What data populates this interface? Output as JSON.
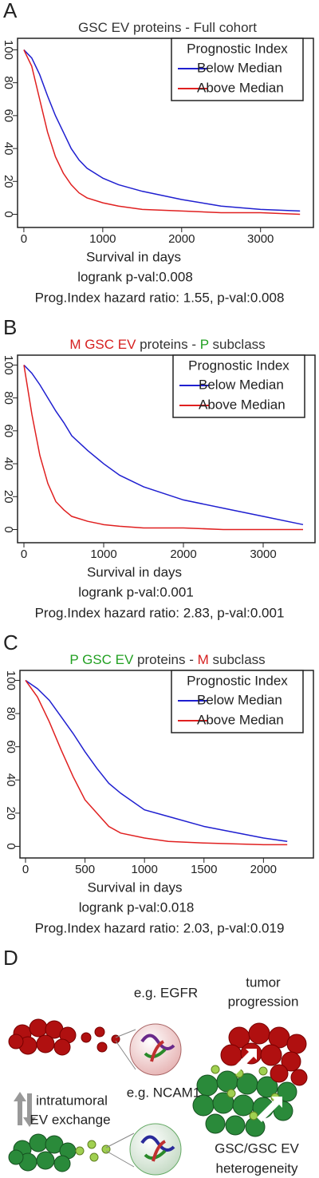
{
  "chart_data": [
    {
      "type": "line",
      "label": "A",
      "title_parts": [
        {
          "text": "GSC EV proteins - Full cohort",
          "color": "#333333"
        }
      ],
      "x_label": "Survival in days",
      "annotations": [
        "logrank p-val:0.008",
        "Prog.Index hazard ratio: 1.55, p-val:0.008"
      ],
      "legend_title": "Prognostic Index",
      "legend": "upper right",
      "x": [
        0,
        100,
        200,
        300,
        400,
        500,
        600,
        700,
        800,
        1000,
        1200,
        1500,
        2000,
        2500,
        3000,
        3500
      ],
      "series": [
        {
          "name": "Below Median",
          "color": "#1f1fd0",
          "values": [
            100,
            95,
            85,
            72,
            60,
            50,
            40,
            33,
            28,
            22,
            18,
            14,
            9,
            5,
            3,
            2
          ]
        },
        {
          "name": "Above Median",
          "color": "#e02020",
          "values": [
            100,
            90,
            70,
            50,
            35,
            25,
            18,
            13,
            10,
            7,
            5,
            3,
            2,
            1,
            1,
            0
          ]
        }
      ],
      "xlim": [
        -80,
        3670
      ],
      "ylim": [
        -8,
        107
      ],
      "xticks": [
        0,
        1000,
        2000,
        3000
      ],
      "yticks": [
        0,
        20,
        40,
        60,
        80,
        100
      ]
    },
    {
      "type": "line",
      "label": "B",
      "title_parts": [
        {
          "text": "M GSC EV",
          "color": "#d62020"
        },
        {
          "text": " proteins - ",
          "color": "#333333"
        },
        {
          "text": "P",
          "color": "#22a022"
        },
        {
          "text": " subclass",
          "color": "#333333"
        }
      ],
      "x_label": "Survival in days",
      "annotations": [
        "logrank p-val:0.001",
        "Prog.Index hazard ratio: 2.83, p-val:0.001"
      ],
      "legend_title": "Prognostic Index",
      "legend": "upper right",
      "x": [
        0,
        100,
        200,
        300,
        400,
        500,
        600,
        800,
        1000,
        1200,
        1500,
        2000,
        2500,
        3000,
        3500
      ],
      "series": [
        {
          "name": "Below Median",
          "color": "#1f1fd0",
          "values": [
            100,
            95,
            88,
            80,
            72,
            65,
            57,
            48,
            40,
            33,
            26,
            18,
            13,
            8,
            3
          ]
        },
        {
          "name": "Above Median",
          "color": "#e02020",
          "values": [
            100,
            70,
            45,
            28,
            17,
            12,
            8,
            5,
            3,
            2,
            1,
            1,
            0,
            0,
            0
          ]
        }
      ],
      "xlim": [
        -80,
        3650
      ],
      "ylim": [
        -8,
        106
      ],
      "xticks": [
        0,
        1000,
        2000,
        3000
      ],
      "yticks": [
        0,
        20,
        40,
        60,
        80,
        100
      ]
    },
    {
      "type": "line",
      "label": "C",
      "title_parts": [
        {
          "text": "P GSC EV",
          "color": "#22a022"
        },
        {
          "text": " proteins - ",
          "color": "#333333"
        },
        {
          "text": "M",
          "color": "#d62020"
        },
        {
          "text": " subclass",
          "color": "#333333"
        }
      ],
      "x_label": "Survival in days",
      "annotations": [
        "logrank p-val:0.018",
        "Prog.Index hazard ratio: 2.03, p-val:0.019"
      ],
      "legend_title": "Prognostic Index",
      "legend": "upper right",
      "x": [
        0,
        100,
        200,
        300,
        400,
        500,
        600,
        700,
        800,
        1000,
        1200,
        1500,
        2000,
        2200
      ],
      "series": [
        {
          "name": "Below Median",
          "color": "#1f1fd0",
          "values": [
            100,
            95,
            88,
            78,
            68,
            57,
            47,
            38,
            32,
            22,
            18,
            12,
            5,
            3
          ]
        },
        {
          "name": "Above Median",
          "color": "#e02020",
          "values": [
            100,
            90,
            75,
            58,
            42,
            28,
            20,
            12,
            8,
            5,
            3,
            2,
            1,
            1
          ]
        }
      ],
      "xlim": [
        -47,
        2420
      ],
      "ylim": [
        -7,
        106
      ],
      "xticks": [
        0,
        500,
        1000,
        1500,
        2000
      ],
      "yticks": [
        0,
        20,
        40,
        60,
        80,
        100
      ]
    }
  ],
  "diagram": {
    "label": "D",
    "egfr": "e.g. EGFR",
    "ncam": "e.g. NCAM1",
    "tumor": [
      "tumor",
      "progression"
    ],
    "exchange": [
      "intratumoral",
      "EV exchange"
    ],
    "hetero": [
      "GSC/GSC EV",
      "heterogeneity"
    ]
  }
}
